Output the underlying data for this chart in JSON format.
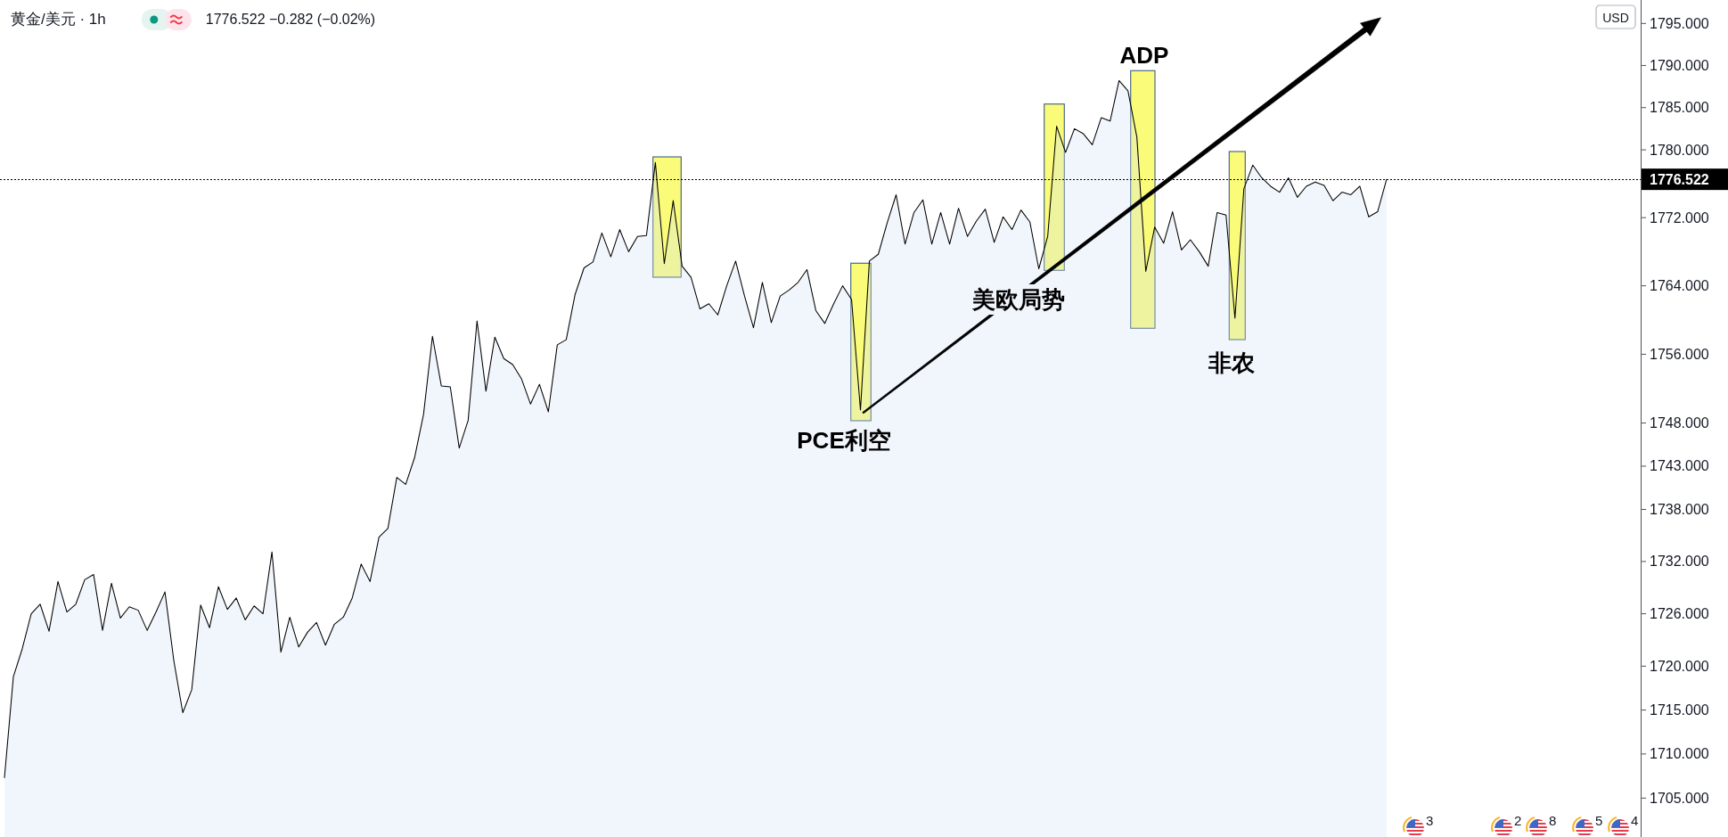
{
  "chart_data": {
    "type": "area",
    "title": "黄金/美元 · 1h",
    "subtitle": "1776.522 −0.282 (−0.02%)",
    "ylabel": "USD",
    "categories": [
      null,
      null,
      null,
      null,
      null,
      null,
      null,
      null,
      null,
      null,
      null,
      null,
      null,
      null,
      null,
      null,
      null,
      null,
      null,
      null,
      null,
      null,
      null,
      null,
      null,
      null,
      null,
      null,
      null,
      null,
      null,
      null,
      null,
      null,
      null,
      null,
      null,
      null,
      null,
      null,
      null,
      null,
      null,
      null,
      null,
      null,
      null,
      null,
      null,
      null,
      null,
      null,
      null,
      null,
      null,
      null,
      null,
      null,
      null,
      null,
      null,
      null,
      null,
      null,
      null,
      null,
      null,
      null,
      null,
      null,
      null,
      null,
      null,
      null,
      null,
      null,
      null,
      null,
      null,
      null,
      null,
      null,
      null,
      null,
      null,
      null,
      null,
      null,
      null,
      null,
      null,
      null,
      null,
      null,
      null,
      null,
      null,
      null,
      null,
      null,
      null,
      null,
      null,
      null,
      null,
      null,
      null,
      null,
      null,
      null,
      null,
      null,
      null,
      null,
      null,
      null,
      null,
      null,
      null,
      null,
      null,
      null,
      null,
      null,
      null,
      null,
      null,
      null,
      null,
      null,
      null,
      null,
      null,
      null,
      null,
      null,
      null,
      null,
      null,
      null,
      null,
      null,
      null,
      null,
      null,
      null,
      null,
      null,
      null,
      null,
      null,
      null,
      null,
      null,
      null,
      null,
      null,
      null,
      null,
      null,
      null,
      null,
      null,
      null,
      null,
      null,
      null,
      null,
      null,
      null,
      null,
      null,
      null,
      null,
      null,
      null,
      null,
      null,
      null,
      null,
      null,
      null,
      null,
      null
    ],
    "series": [
      {
        "color": "#000000",
        "values": [
          1707.3,
          1718.8,
          1722.0,
          1726.0,
          1727.1,
          1724.0,
          1729.7,
          1726.2,
          1727.1,
          1729.9,
          1730.5,
          1724.1,
          1729.5,
          1725.5,
          1726.8,
          1726.4,
          1724.1,
          1726.2,
          1728.5,
          1720.6,
          1714.7,
          1717.3,
          1727.0,
          1724.4,
          1729.1,
          1726.5,
          1727.8,
          1725.3,
          1726.9,
          1726.0,
          1733.1,
          1721.6,
          1725.6,
          1722.2,
          1723.9,
          1725.0,
          1722.4,
          1724.8,
          1725.6,
          1727.8,
          1731.7,
          1729.7,
          1734.8,
          1735.8,
          1741.7,
          1740.9,
          1744.0,
          1749.0,
          1758.1,
          1752.3,
          1752.2,
          1745.1,
          1748.3,
          1759.9,
          1751.7,
          1758.0,
          1755.5,
          1754.8,
          1753.1,
          1750.2,
          1752.5,
          1749.3,
          1757.1,
          1757.7,
          1763.0,
          1766.1,
          1766.8,
          1770.2,
          1767.4,
          1770.6,
          1768.0,
          1769.8,
          1769.9,
          1778.5,
          1766.6,
          1774.0,
          1766.3,
          1765.0,
          1761.3,
          1761.9,
          1760.6,
          1764.0,
          1766.9,
          1762.8,
          1759.1,
          1764.4,
          1759.7,
          1762.8,
          1763.5,
          1764.4,
          1765.9,
          1761.1,
          1759.6,
          1761.9,
          1764.0,
          1762.4,
          1749.5,
          1766.9,
          1767.7,
          1771.4,
          1774.7,
          1768.9,
          1772.6,
          1774.1,
          1768.9,
          1772.6,
          1768.9,
          1773.1,
          1769.8,
          1771.6,
          1773.0,
          1769.1,
          1772.1,
          1770.6,
          1772.9,
          1771.5,
          1766.0,
          1769.8,
          1782.8,
          1779.7,
          1782.5,
          1781.9,
          1780.6,
          1783.8,
          1783.4,
          1788.2,
          1787.0,
          1781.5,
          1765.7,
          1770.9,
          1769.0,
          1772.7,
          1768.2,
          1769.4,
          1768.0,
          1766.3,
          1772.6,
          1772.3,
          1760.2,
          1775.4,
          1778.2,
          1776.7,
          1775.7,
          1775.0,
          1776.7,
          1774.4,
          1775.7,
          1776.2,
          1775.8,
          1774.0,
          1775.0,
          1774.7,
          1775.7,
          1772.1,
          1772.7,
          1776.5,
          null,
          null,
          null,
          null,
          null,
          null,
          null,
          null,
          null,
          null,
          null,
          null,
          null,
          null,
          null,
          null,
          null,
          null,
          null,
          null,
          null,
          null,
          null,
          null,
          null,
          null,
          null,
          null
        ]
      }
    ],
    "log": true,
    "ylim": [
      1700.6,
      1797.8
    ],
    "yticks": [
      {
        "value": 1705,
        "label": "1705.000"
      },
      {
        "value": 1710,
        "label": "1710.000"
      },
      {
        "value": 1715,
        "label": "1715.000"
      },
      {
        "value": 1720,
        "label": "1720.000"
      },
      {
        "value": 1726,
        "label": "1726.000"
      },
      {
        "value": 1732,
        "label": "1732.000"
      },
      {
        "value": 1738,
        "label": "1738.000"
      },
      {
        "value": 1743,
        "label": "1743.000"
      },
      {
        "value": 1748,
        "label": "1748.000"
      },
      {
        "value": 1756,
        "label": "1756.000"
      },
      {
        "value": 1764,
        "label": "1764.000"
      },
      {
        "value": 1772,
        "label": "1772.000"
      },
      {
        "value": 1780,
        "label": "1780.000"
      },
      {
        "value": 1785,
        "label": "1785.000"
      },
      {
        "value": 1790,
        "label": "1790.000"
      },
      {
        "value": 1795,
        "label": "1795.000"
      }
    ],
    "tick_labels": "y",
    "ref_lines": [
      {
        "axis": "y",
        "value": 1776.522,
        "label": "1776.522",
        "line_style": "dotted",
        "color": "#000000"
      }
    ],
    "annotations": [
      "PCE利空",
      "美欧局势",
      "ADP",
      "非农",
      "3",
      "2",
      "8",
      "5",
      "4"
    ]
  }
}
